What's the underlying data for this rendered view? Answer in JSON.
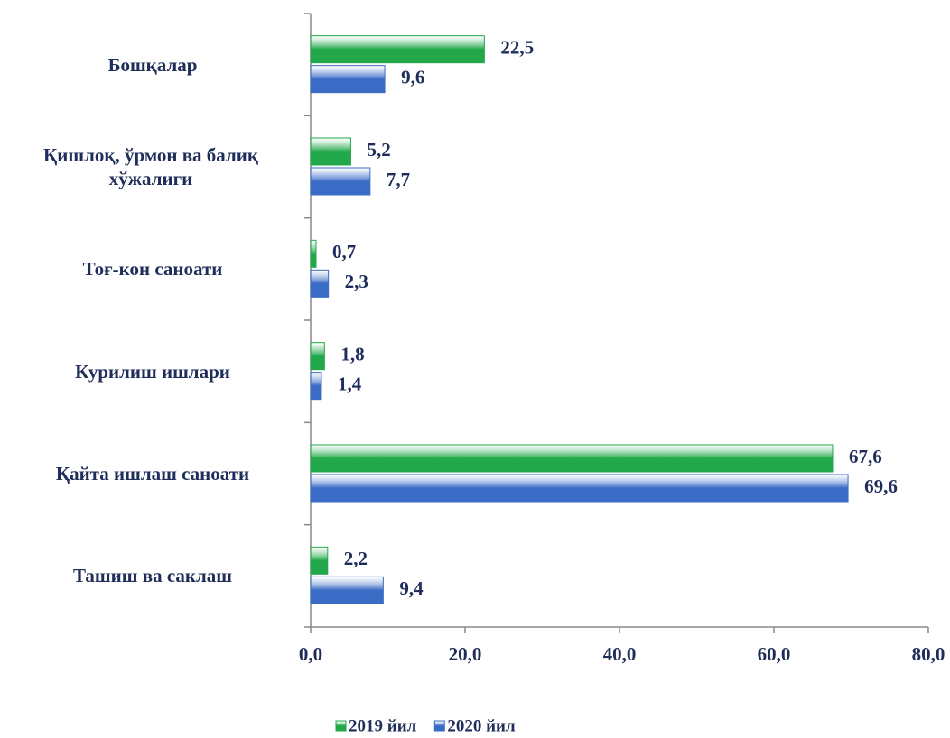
{
  "chart_data": {
    "type": "bar",
    "orientation": "horizontal",
    "categories": [
      "Бошқалар",
      "Қишлоқ, ўрмон ва балиқ хўжалиги",
      "Тоғ-кон саноати",
      "Курилиш ишлари",
      "Қайта ишлаш саноати",
      "Ташиш ва саклаш"
    ],
    "series": [
      {
        "name": "2019 йил",
        "color": "#22a84a",
        "values": [
          22.5,
          5.2,
          0.7,
          1.8,
          67.6,
          2.2
        ],
        "value_labels": [
          "22,5",
          "5,2",
          "0,7",
          "1,8",
          "67,6",
          "2,2"
        ]
      },
      {
        "name": "2020 йил",
        "color": "#3a6cc6",
        "values": [
          9.6,
          7.7,
          2.3,
          1.4,
          69.6,
          9.4
        ],
        "value_labels": [
          "9,6",
          "7,7",
          "2,3",
          "1,4",
          "69,6",
          "9,4"
        ]
      }
    ],
    "xlim": [
      0,
      80
    ],
    "xticks": [
      {
        "value": 0,
        "label": "0,0"
      },
      {
        "value": 20,
        "label": "20,0"
      },
      {
        "value": 40,
        "label": "40,0"
      },
      {
        "value": 60,
        "label": "60,0"
      },
      {
        "value": 80,
        "label": "80,0"
      }
    ],
    "legend": "bottom"
  }
}
